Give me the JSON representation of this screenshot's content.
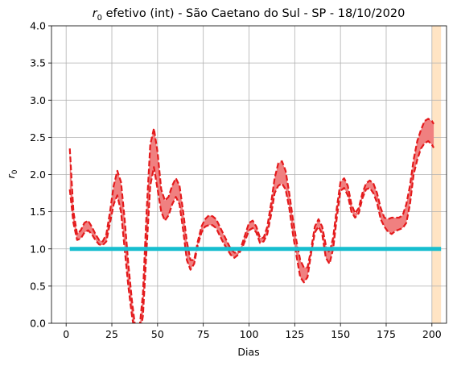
{
  "chart_data": {
    "type": "line",
    "title": {
      "symbol": "r",
      "symbol_sub": "0",
      "text": " efetivo (int) - São Caetano do Sul - SP - 18/10/2020"
    },
    "xlabel": "Dias",
    "ylabel": {
      "symbol": "r",
      "symbol_sub": "0"
    },
    "xlim": [
      -8,
      208
    ],
    "ylim": [
      0,
      4.0
    ],
    "x_ticks": [
      0,
      25,
      50,
      75,
      100,
      125,
      150,
      175,
      200
    ],
    "y_ticks": [
      0.0,
      0.5,
      1.0,
      1.5,
      2.0,
      2.5,
      3.0,
      3.5,
      4.0
    ],
    "y_tick_labels": [
      "0.0",
      "0.5",
      "1.0",
      "1.5",
      "2.0",
      "2.5",
      "3.0",
      "3.5",
      "4.0"
    ],
    "grid": true,
    "series": [
      {
        "role": "upper",
        "style": "dashed",
        "color": "#e41a1c",
        "x": [
          2,
          4,
          6,
          8,
          10,
          12,
          14,
          16,
          18,
          20,
          22,
          24,
          26,
          28,
          30,
          32,
          34,
          36,
          38,
          40,
          42,
          44,
          46,
          48,
          50,
          52,
          54,
          56,
          58,
          60,
          62,
          64,
          66,
          68,
          70,
          72,
          74,
          76,
          78,
          80,
          82,
          84,
          86,
          88,
          90,
          92,
          94,
          96,
          98,
          100,
          102,
          104,
          106,
          108,
          110,
          112,
          114,
          116,
          118,
          120,
          122,
          124,
          126,
          128,
          130,
          132,
          134,
          136,
          138,
          140,
          142,
          144,
          146,
          148,
          150,
          152,
          154,
          156,
          158,
          160,
          162,
          164,
          166,
          168,
          170,
          172,
          174,
          176,
          178,
          180,
          182,
          184,
          186,
          188,
          190,
          192,
          194,
          196,
          198,
          200,
          201
        ],
        "y": [
          2.35,
          1.5,
          1.2,
          1.25,
          1.35,
          1.38,
          1.3,
          1.2,
          1.12,
          1.1,
          1.2,
          1.5,
          1.85,
          2.05,
          1.9,
          1.4,
          0.8,
          0.3,
          -0.1,
          -0.1,
          0.4,
          1.5,
          2.4,
          2.62,
          2.3,
          1.8,
          1.65,
          1.7,
          1.85,
          1.95,
          1.85,
          1.5,
          1.1,
          0.85,
          0.85,
          1.1,
          1.3,
          1.4,
          1.45,
          1.44,
          1.4,
          1.3,
          1.2,
          1.1,
          1.0,
          0.95,
          0.95,
          1.05,
          1.2,
          1.35,
          1.38,
          1.3,
          1.15,
          1.15,
          1.3,
          1.6,
          1.95,
          2.15,
          2.18,
          2.05,
          1.75,
          1.4,
          1.1,
          0.85,
          0.75,
          0.75,
          1.0,
          1.3,
          1.4,
          1.3,
          1.05,
          0.95,
          1.15,
          1.55,
          1.9,
          1.95,
          1.85,
          1.6,
          1.48,
          1.55,
          1.75,
          1.88,
          1.92,
          1.88,
          1.75,
          1.55,
          1.42,
          1.4,
          1.42,
          1.42,
          1.42,
          1.45,
          1.6,
          1.85,
          2.2,
          2.45,
          2.6,
          2.72,
          2.75,
          2.72,
          2.68
        ]
      },
      {
        "role": "lower",
        "style": "dashed",
        "color": "#e41a1c",
        "x": [
          2,
          4,
          6,
          8,
          10,
          12,
          14,
          16,
          18,
          20,
          22,
          24,
          26,
          28,
          30,
          32,
          34,
          36,
          38,
          40,
          42,
          44,
          46,
          48,
          50,
          52,
          54,
          56,
          58,
          60,
          62,
          64,
          66,
          68,
          70,
          72,
          74,
          76,
          78,
          80,
          82,
          84,
          86,
          88,
          90,
          92,
          94,
          96,
          98,
          100,
          102,
          104,
          106,
          108,
          110,
          112,
          114,
          116,
          118,
          120,
          122,
          124,
          126,
          128,
          130,
          132,
          134,
          136,
          138,
          140,
          142,
          144,
          146,
          148,
          150,
          152,
          154,
          156,
          158,
          160,
          162,
          164,
          166,
          168,
          170,
          172,
          174,
          176,
          178,
          180,
          182,
          184,
          186,
          188,
          190,
          192,
          194,
          196,
          198,
          200,
          201
        ],
        "y": [
          1.8,
          1.35,
          1.12,
          1.14,
          1.22,
          1.25,
          1.2,
          1.12,
          1.06,
          1.05,
          1.1,
          1.35,
          1.6,
          1.72,
          1.5,
          1.0,
          0.5,
          0.1,
          -0.2,
          -0.2,
          0.1,
          1.0,
          1.85,
          2.1,
          1.8,
          1.5,
          1.38,
          1.45,
          1.6,
          1.7,
          1.6,
          1.25,
          0.85,
          0.72,
          0.8,
          1.05,
          1.22,
          1.3,
          1.32,
          1.32,
          1.28,
          1.18,
          1.08,
          1.0,
          0.92,
          0.88,
          0.92,
          1.0,
          1.12,
          1.25,
          1.28,
          1.22,
          1.08,
          1.1,
          1.2,
          1.45,
          1.75,
          1.85,
          1.88,
          1.8,
          1.55,
          1.2,
          0.9,
          0.62,
          0.55,
          0.62,
          0.95,
          1.22,
          1.3,
          1.2,
          0.88,
          0.8,
          1.0,
          1.42,
          1.78,
          1.82,
          1.72,
          1.5,
          1.42,
          1.48,
          1.68,
          1.8,
          1.82,
          1.75,
          1.62,
          1.4,
          1.3,
          1.23,
          1.2,
          1.24,
          1.26,
          1.28,
          1.35,
          1.6,
          2.0,
          2.2,
          2.35,
          2.42,
          2.45,
          2.4,
          2.36
        ]
      },
      {
        "role": "reference",
        "style": "solid",
        "color": "#17becf",
        "x": [
          2,
          205
        ],
        "y": [
          1.0,
          1.0
        ]
      }
    ],
    "shaded_regions": [
      {
        "x_range": [
          200,
          205
        ],
        "color": "#ffe4c4"
      }
    ],
    "band_fill_color": "#f08080"
  }
}
